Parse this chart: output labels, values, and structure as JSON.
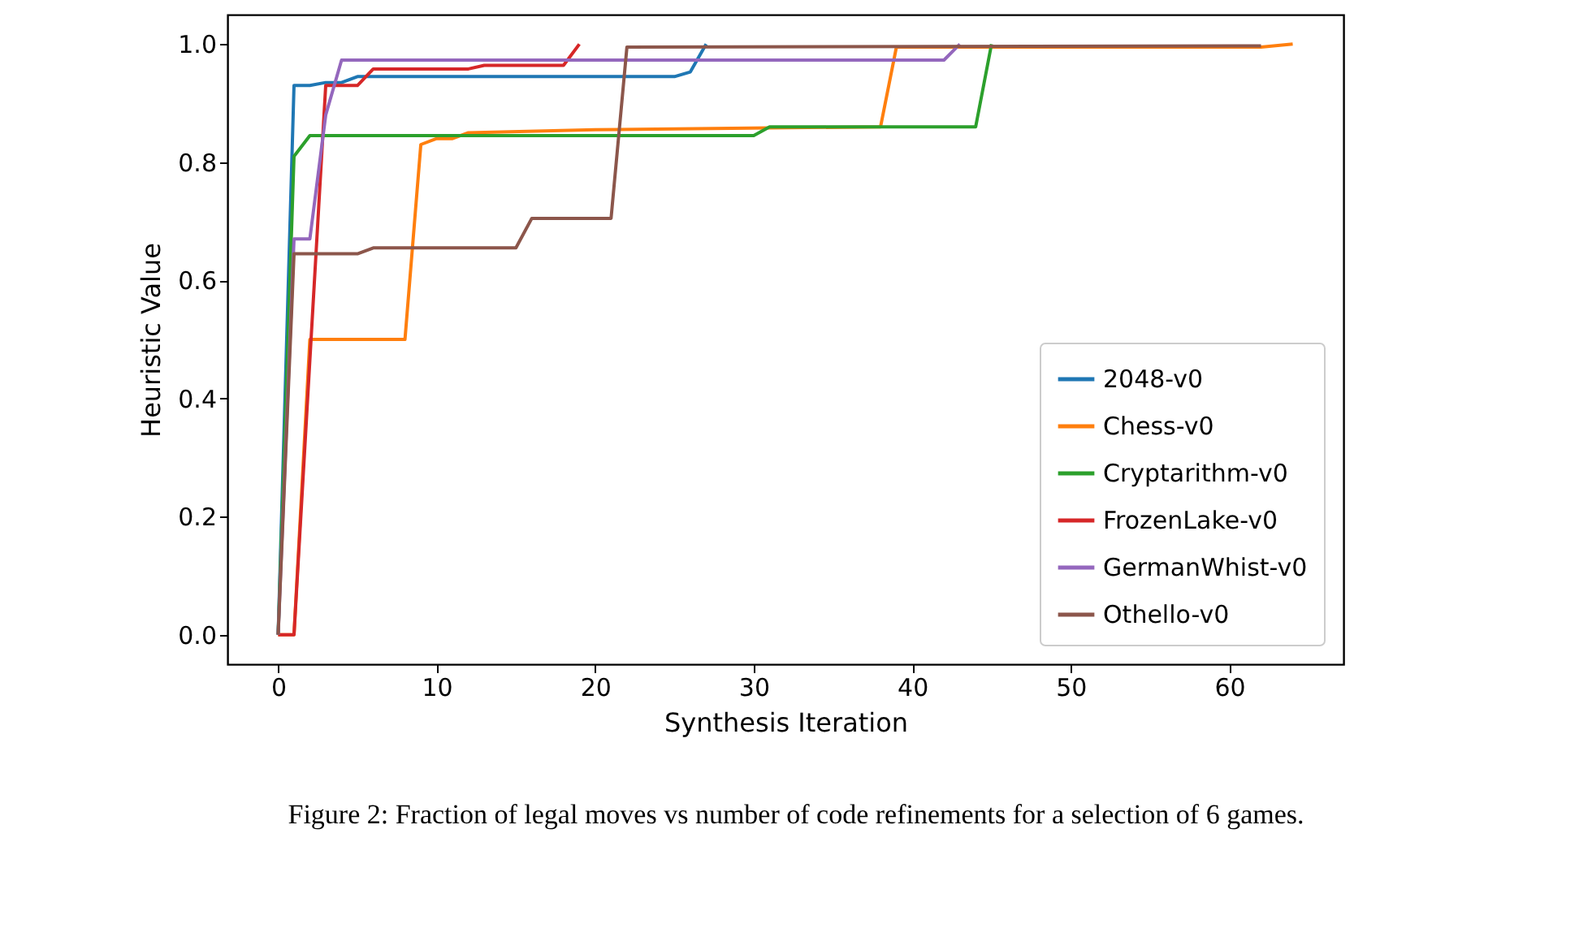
{
  "chart_data": {
    "type": "line",
    "xlabel": "Synthesis Iteration",
    "ylabel": "Heuristic Value",
    "annotations": [
      "Figure 2: Fraction of legal moves vs number of code refinements for a selection of 6 games."
    ],
    "xlim": [
      -3.2,
      67.2
    ],
    "ylim": [
      -0.05,
      1.05
    ],
    "xticks": [
      0,
      10,
      20,
      30,
      40,
      50,
      60
    ],
    "yticks": [
      {
        "value": 0,
        "label": "0.0"
      },
      {
        "value": 0.2,
        "label": "0.2"
      },
      {
        "value": 0.4,
        "label": "0.4"
      },
      {
        "value": 0.6,
        "label": "0.6"
      },
      {
        "value": 0.8,
        "label": "0.8"
      },
      {
        "value": 1,
        "label": "1.0"
      }
    ],
    "grid": false,
    "legend": "bottom right",
    "marker": "none",
    "line_style": "solid",
    "series": [
      {
        "name": "2048-v0",
        "color": "#1f77b4",
        "x": [
          0,
          1,
          2,
          3,
          4,
          5,
          25,
          26,
          27
        ],
        "values": [
          0,
          0.93,
          0.93,
          0.935,
          0.935,
          0.945,
          0.945,
          0.953,
          1.0
        ]
      },
      {
        "name": "Chess-v0",
        "color": "#ff7f0e",
        "x": [
          0,
          1,
          2,
          8,
          9,
          10,
          11,
          12,
          20,
          38,
          39,
          62,
          64
        ],
        "values": [
          0,
          0,
          0.5,
          0.5,
          0.83,
          0.84,
          0.84,
          0.85,
          0.855,
          0.86,
          0.995,
          0.995,
          1.0
        ]
      },
      {
        "name": "Cryptarithm-v0",
        "color": "#2ca02c",
        "x": [
          0,
          1,
          2,
          30,
          31,
          44,
          45
        ],
        "values": [
          0,
          0.81,
          0.845,
          0.845,
          0.86,
          0.86,
          1.0
        ]
      },
      {
        "name": "FrozenLake-v0",
        "color": "#d62728",
        "x": [
          0,
          1,
          3,
          5,
          6,
          12,
          13,
          18,
          19
        ],
        "values": [
          0,
          0,
          0.93,
          0.93,
          0.958,
          0.958,
          0.964,
          0.964,
          1.0
        ]
      },
      {
        "name": "GermanWhist-v0",
        "color": "#9467bd",
        "x": [
          0,
          1,
          2,
          3,
          4,
          42,
          43
        ],
        "values": [
          0,
          0.67,
          0.67,
          0.88,
          0.973,
          0.973,
          1.0
        ]
      },
      {
        "name": "Othello-v0",
        "color": "#8c564b",
        "x": [
          0,
          1,
          5,
          6,
          15,
          16,
          21,
          22,
          62
        ],
        "values": [
          0,
          0.645,
          0.645,
          0.655,
          0.655,
          0.705,
          0.705,
          0.995,
          0.997
        ]
      }
    ]
  }
}
